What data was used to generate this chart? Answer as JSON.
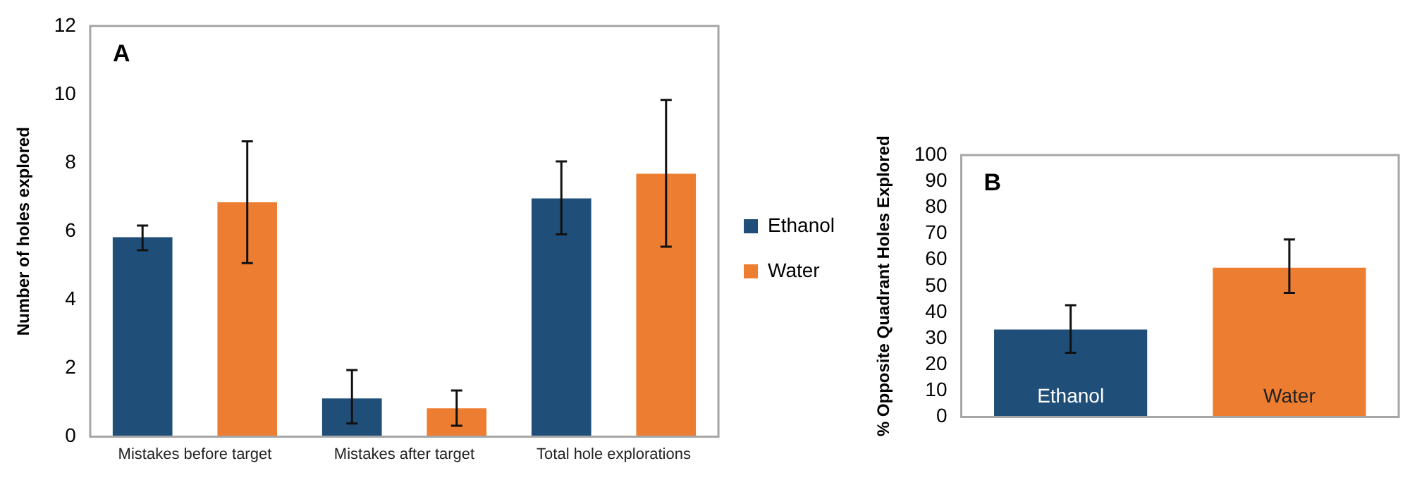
{
  "chart_data": [
    {
      "type": "bar",
      "ylabel": "Number of holes explored",
      "categories": [
        "Mistakes before target",
        "Mistakes after target",
        "Total hole explorations"
      ],
      "series": [
        {
          "name": "Ethanol",
          "color": "#1f4e79",
          "values": [
            5.83,
            1.12,
            6.96
          ],
          "errors": [
            [
              5.45,
              6.17
            ],
            [
              0.39,
              1.95
            ],
            [
              5.91,
              8.04
            ]
          ]
        },
        {
          "name": "Water",
          "color": "#ed7d31",
          "values": [
            6.85,
            0.83,
            7.68
          ],
          "errors": [
            [
              5.07,
              8.63
            ],
            [
              0.32,
              1.35
            ],
            [
              5.55,
              9.84
            ]
          ]
        }
      ],
      "ylim": [
        0,
        12
      ],
      "yticks": [
        0,
        2,
        4,
        6,
        8,
        10,
        12
      ],
      "grid": false,
      "legend": "right",
      "annotations": [
        "A"
      ]
    },
    {
      "type": "bar",
      "ylabel": "% Opposite Quadrant Holes Explored",
      "categories": [
        "Ethanol",
        "Water"
      ],
      "values": [
        33.4,
        57
      ],
      "colors": [
        "#1f4e79",
        "#ed7d31"
      ],
      "errors": [
        [
          24.5,
          42.7
        ],
        [
          47.4,
          67.8
        ]
      ],
      "ylim": [
        0,
        100
      ],
      "yticks": [
        0,
        10,
        20,
        30,
        40,
        50,
        60,
        70,
        80,
        90,
        100
      ],
      "grid": false,
      "legend": false,
      "annotations": [
        "B"
      ]
    }
  ]
}
